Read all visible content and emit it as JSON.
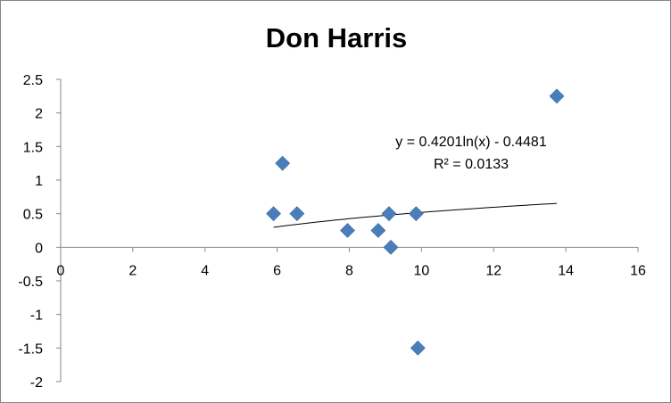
{
  "chart_data": {
    "type": "scatter",
    "title": "Don Harris",
    "xlabel": "",
    "ylabel": "",
    "xlim": [
      0,
      16
    ],
    "ylim": [
      -2,
      2.5
    ],
    "x_ticks": [
      "0",
      "2",
      "4",
      "6",
      "8",
      "10",
      "12",
      "14",
      "16"
    ],
    "y_ticks": [
      "2.5",
      "2",
      "1.5",
      "1",
      "0.5",
      "0",
      "-0.5",
      "-1",
      "-1.5",
      "-2"
    ],
    "grid": false,
    "legend": "none",
    "marker": "diamond",
    "marker_color": "#4A7EBB",
    "series": [
      {
        "points": [
          {
            "x": 5.9,
            "y": 0.5
          },
          {
            "x": 6.15,
            "y": 1.25
          },
          {
            "x": 6.55,
            "y": 0.5
          },
          {
            "x": 7.95,
            "y": 0.25
          },
          {
            "x": 8.8,
            "y": 0.25
          },
          {
            "x": 9.1,
            "y": 0.5
          },
          {
            "x": 9.15,
            "y": 0.0
          },
          {
            "x": 9.85,
            "y": 0.5
          },
          {
            "x": 9.9,
            "y": -1.5
          },
          {
            "x": 13.75,
            "y": 2.25
          }
        ]
      }
    ],
    "trendline": {
      "type": "logarithmic",
      "a": 0.4201,
      "b": -0.4481,
      "x_range": [
        5.9,
        13.75
      ],
      "color": "#000000"
    },
    "annotations": {
      "equation": "y = 0.4201ln(x) - 0.4481",
      "r_squared": "R² = 0.0133"
    }
  }
}
